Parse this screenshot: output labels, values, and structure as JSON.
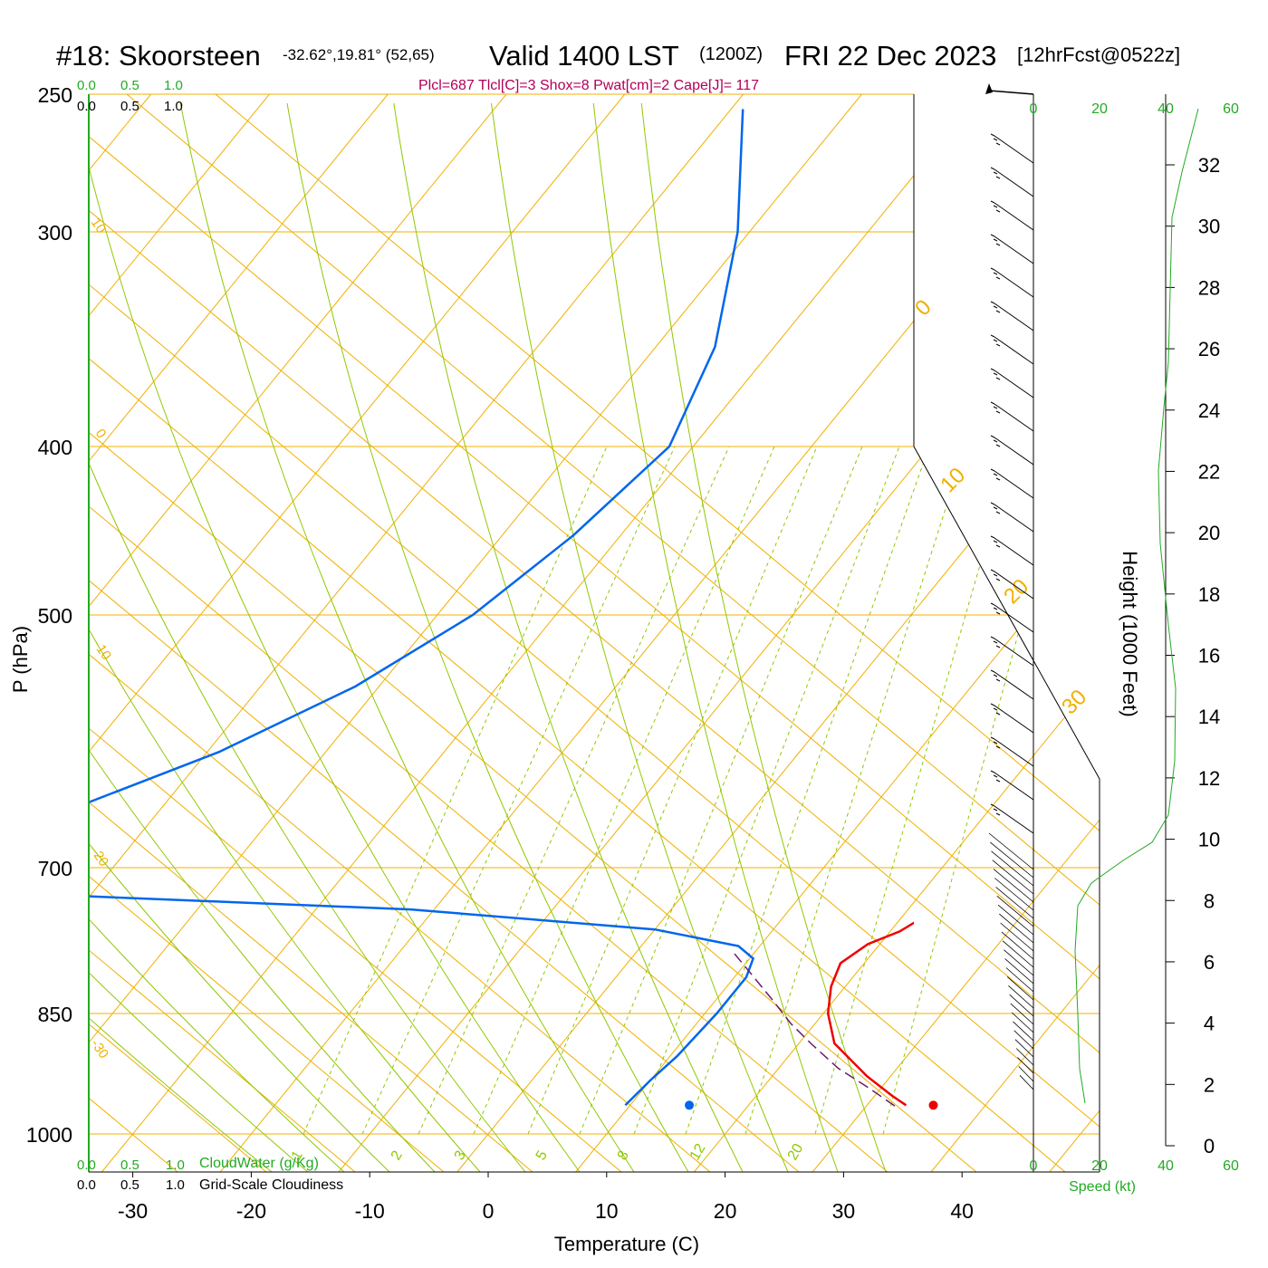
{
  "header": {
    "station": "#18: Skoorsteen",
    "coords": "-32.62°,19.81° (52,65)",
    "valid": "Valid 1400 LST",
    "zulu": "(1200Z)",
    "date": "FRI 22 Dec 2023",
    "fcst": "[12hrFcst@0522z]",
    "params": "Plcl=687 Tlcl[C]=3 Shox=8 Pwat[cm]=2 Cape[J]= 117"
  },
  "colors": {
    "temperature": "#ee0000",
    "dewpoint": "#0066ee",
    "isotherm": "#f0b000",
    "adiabat": "#90c800",
    "mixing_ratio": "#90c800",
    "params_text": "#b0005a",
    "scale_green": "#22aa22",
    "parcel": "#6a1a6a"
  },
  "cloud_scales": {
    "ticks": [
      "0.0",
      "0.5",
      "1.0"
    ],
    "cloudwater_label": "CloudWater (g/Kg)",
    "cloudiness_label": "Grid-Scale Cloudiness"
  },
  "wind_scale": {
    "ticks": [
      "0",
      "20",
      "40",
      "60"
    ],
    "label": "Speed (kt)"
  },
  "chart_data": {
    "type": "line",
    "title": "#18: Skoorsteen  Valid 1400 LST (1200Z) FRI 22 Dec 2023",
    "xlabel": "Temperature (C)",
    "ylabel": "P (hPa)",
    "y2label": "Height (1000 Feet)",
    "xlim": [
      -34,
      36
    ],
    "ylim": [
      1000,
      250
    ],
    "x_ticks": [
      "-30",
      "-20",
      "-10",
      "0",
      "10",
      "20",
      "30",
      "40"
    ],
    "pressure_ticks": [
      "250",
      "300",
      "400",
      "500",
      "700",
      "850",
      "1000"
    ],
    "height_ticks": [
      "0",
      "2",
      "4",
      "6",
      "8",
      "10",
      "12",
      "14",
      "16",
      "18",
      "20",
      "22",
      "24",
      "26",
      "28",
      "30",
      "32"
    ],
    "isotherm_labels": [
      "10",
      "0",
      "-10",
      "-20",
      "-30",
      "0",
      "10",
      "20",
      "30"
    ],
    "mixing_ratio_labels": [
      "1",
      "2",
      "3",
      "5",
      "8",
      "12",
      "20"
    ],
    "series": [
      {
        "name": "Temperature",
        "points": [
          [
            33.3,
            962
          ],
          [
            31.5,
            950
          ],
          [
            28,
            925
          ],
          [
            23,
            885
          ],
          [
            20.4,
            850
          ],
          [
            18.8,
            820
          ],
          [
            18,
            795
          ],
          [
            19,
            775
          ],
          [
            20.8,
            762
          ],
          [
            22,
            745
          ],
          [
            22.3,
            700
          ],
          [
            21.7,
            650
          ],
          [
            20.2,
            600
          ],
          [
            17.8,
            550
          ],
          [
            14.5,
            500
          ],
          [
            11,
            450
          ],
          [
            6.2,
            400
          ],
          [
            0,
            350
          ],
          [
            -7.5,
            300
          ],
          [
            -16.8,
            255
          ]
        ]
      },
      {
        "name": "Dewpoint",
        "points": [
          [
            9.6,
            962
          ],
          [
            10,
            930
          ],
          [
            10.6,
            900
          ],
          [
            11,
            850
          ],
          [
            11,
            810
          ],
          [
            10.3,
            790
          ],
          [
            8.2,
            777
          ],
          [
            0,
            760
          ],
          [
            -22,
            740
          ],
          [
            -55,
            725
          ],
          [
            -60,
            725
          ],
          [
            -58,
            650
          ],
          [
            -49,
            600
          ],
          [
            -42,
            550
          ],
          [
            -37,
            500
          ],
          [
            -34,
            450
          ],
          [
            -32,
            400
          ],
          [
            -35,
            350
          ],
          [
            -41,
            300
          ],
          [
            -49,
            255
          ]
        ]
      },
      {
        "name": "Parcel",
        "points": [
          [
            32.4,
            963
          ],
          [
            29,
            940
          ],
          [
            25,
            915
          ],
          [
            21,
            885
          ],
          [
            18,
            862
          ],
          [
            14.8,
            835
          ],
          [
            11.4,
            808
          ],
          [
            8,
            782
          ]
        ]
      }
    ],
    "surface_points": [
      {
        "name": "Surface temperature",
        "temperature": 35.6,
        "pressure": 962
      },
      {
        "name": "Surface dewpoint",
        "temperature": 15,
        "pressure": 962
      }
    ],
    "wind_barbs": "shown",
    "grid": true
  }
}
